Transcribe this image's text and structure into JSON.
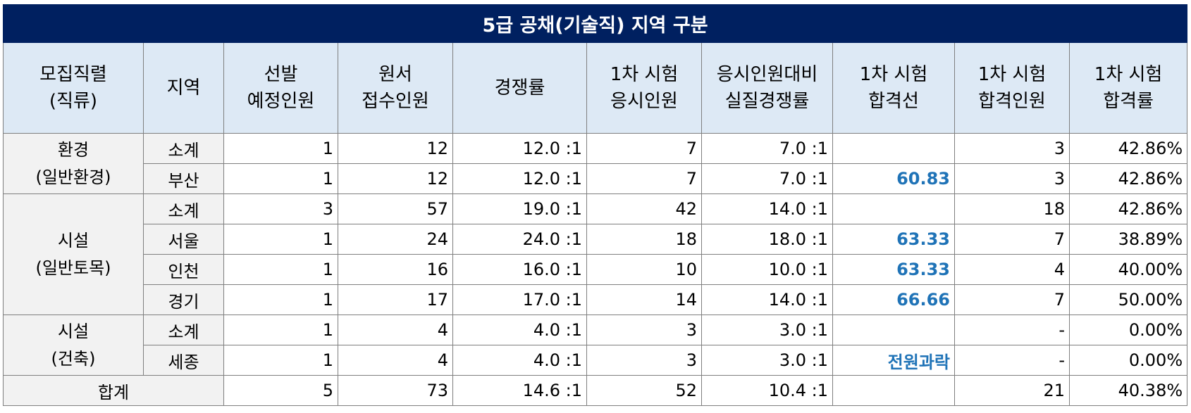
{
  "title": "5급 공채(기술직) 지역 구분",
  "headers": [
    [
      "모집직렬",
      "(직류)"
    ],
    [
      "지역"
    ],
    [
      "선발",
      "예정인원"
    ],
    [
      "원서",
      "접수인원"
    ],
    [
      "경쟁률"
    ],
    [
      "1차 시험",
      "응시인원"
    ],
    [
      "응시인원대비",
      "실질경쟁률"
    ],
    [
      "1차 시험",
      "합격선"
    ],
    [
      "1차 시험",
      "합격인원"
    ],
    [
      "1차 시험",
      "합격률"
    ]
  ],
  "groups": [
    {
      "name": [
        "환경",
        "(일반환경)"
      ],
      "rows": [
        {
          "region": "소계",
          "planned": "1",
          "applied": "12",
          "ratio": "12.0 :1",
          "examinees": "7",
          "real_ratio": "7.0 :1",
          "cutoff": "",
          "passed": "3",
          "pass_rate": "42.86%"
        },
        {
          "region": "부산",
          "planned": "1",
          "applied": "12",
          "ratio": "12.0 :1",
          "examinees": "7",
          "real_ratio": "7.0 :1",
          "cutoff": "60.83",
          "passed": "3",
          "pass_rate": "42.86%"
        }
      ]
    },
    {
      "name": [
        "시설",
        "(일반토목)"
      ],
      "rows": [
        {
          "region": "소계",
          "planned": "3",
          "applied": "57",
          "ratio": "19.0 :1",
          "examinees": "42",
          "real_ratio": "14.0 :1",
          "cutoff": "",
          "passed": "18",
          "pass_rate": "42.86%"
        },
        {
          "region": "서울",
          "planned": "1",
          "applied": "24",
          "ratio": "24.0 :1",
          "examinees": "18",
          "real_ratio": "18.0 :1",
          "cutoff": "63.33",
          "passed": "7",
          "pass_rate": "38.89%"
        },
        {
          "region": "인천",
          "planned": "1",
          "applied": "16",
          "ratio": "16.0 :1",
          "examinees": "10",
          "real_ratio": "10.0 :1",
          "cutoff": "63.33",
          "passed": "4",
          "pass_rate": "40.00%"
        },
        {
          "region": "경기",
          "planned": "1",
          "applied": "17",
          "ratio": "17.0 :1",
          "examinees": "14",
          "real_ratio": "14.0 :1",
          "cutoff": "66.66",
          "passed": "7",
          "pass_rate": "50.00%"
        }
      ]
    },
    {
      "name": [
        "시설",
        "(건축)"
      ],
      "rows": [
        {
          "region": "소계",
          "planned": "1",
          "applied": "4",
          "ratio": "4.0 :1",
          "examinees": "3",
          "real_ratio": "3.0 :1",
          "cutoff": "",
          "passed": "-",
          "pass_rate": "0.00%"
        },
        {
          "region": "세종",
          "planned": "1",
          "applied": "4",
          "ratio": "4.0 :1",
          "examinees": "3",
          "real_ratio": "3.0 :1",
          "cutoff": "전원과락",
          "passed": "-",
          "pass_rate": "0.00%"
        }
      ]
    }
  ],
  "total": {
    "label": "합계",
    "planned": "5",
    "applied": "73",
    "ratio": "14.6 :1",
    "examinees": "52",
    "real_ratio": "10.4 :1",
    "cutoff": "",
    "passed": "21",
    "pass_rate": "40.38%"
  }
}
